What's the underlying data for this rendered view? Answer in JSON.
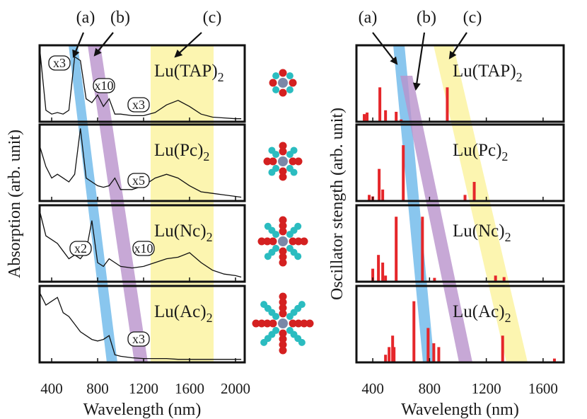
{
  "bands": [
    {
      "label": "(a)",
      "color": "#6cb8ea"
    },
    {
      "label": "(b)",
      "color": "#b992cc"
    },
    {
      "label": "(c)",
      "color": "#fbf39c"
    }
  ],
  "chart_data": [
    {
      "type": "line",
      "ylabel": "Absorption (arb. unit)",
      "xlabel": "Wavelength (nm)",
      "xlim": [
        295,
        2080
      ],
      "xticks": [
        400,
        800,
        1200,
        1600,
        2000
      ],
      "ylim": [
        0,
        1
      ],
      "color": "#111111",
      "x": [
        300,
        350,
        400,
        450,
        500,
        550,
        600,
        650,
        700,
        750,
        800,
        850,
        900,
        950,
        1000,
        1100,
        1200,
        1300,
        1400,
        1500,
        1600,
        1700,
        1800,
        1900,
        2000,
        2050
      ],
      "panels": [
        {
          "name": "Lu(TAP)",
          "subscript": "2",
          "annotations": [
            "x3",
            "x10",
            "x3"
          ],
          "values": [
            0.9,
            0.15,
            0.1,
            0.12,
            0.1,
            0.15,
            0.85,
            0.8,
            0.3,
            0.25,
            0.35,
            0.2,
            0.3,
            0.1,
            0.1,
            0.08,
            0.08,
            0.12,
            0.22,
            0.28,
            0.2,
            0.1,
            0.06,
            0.05,
            0.04,
            0.04
          ]
        },
        {
          "name": "Lu(Pc)",
          "subscript": "2",
          "annotations": [
            "x5"
          ],
          "values": [
            0.7,
            0.45,
            0.3,
            0.35,
            0.3,
            0.25,
            0.35,
            0.95,
            0.3,
            0.25,
            0.2,
            0.18,
            0.2,
            0.3,
            0.15,
            0.15,
            0.2,
            0.3,
            0.35,
            0.3,
            0.2,
            0.12,
            0.1,
            0.08,
            0.06,
            0.05
          ]
        },
        {
          "name": "Lu(Nc)",
          "subscript": "2",
          "annotations": [
            "x2",
            "x10"
          ],
          "values": [
            0.9,
            0.6,
            0.55,
            0.5,
            0.4,
            0.3,
            0.35,
            0.3,
            0.4,
            0.8,
            0.25,
            0.2,
            0.3,
            0.25,
            0.2,
            0.18,
            0.2,
            0.25,
            0.3,
            0.32,
            0.38,
            0.25,
            0.15,
            0.1,
            0.08,
            0.06
          ]
        },
        {
          "name": "Lu(Ac)",
          "subscript": "2",
          "annotations": [
            "x3"
          ],
          "values": [
            0.9,
            0.75,
            0.8,
            0.85,
            0.65,
            0.6,
            0.5,
            0.4,
            0.35,
            0.3,
            0.28,
            0.3,
            0.35,
            0.1,
            0.08,
            0.06,
            0.05,
            0.05,
            0.05,
            0.04,
            0.04,
            0.04,
            0.04,
            0.04,
            0.04,
            0.04
          ]
        }
      ]
    },
    {
      "type": "stick",
      "ylabel": "Oscillator stength (arb. unit)",
      "xlabel": "Wavelength (nm)",
      "xlim": [
        285,
        1745
      ],
      "xticks": [
        400,
        800,
        1200,
        1600
      ],
      "ylim": [
        0,
        1
      ],
      "color": "#e5262a",
      "panels": [
        {
          "name": "Lu(TAP)",
          "subscript": "2",
          "x": [
            340,
            360,
            450,
            490,
            565,
            600,
            925
          ],
          "values": [
            0.1,
            0.12,
            0.45,
            0.15,
            0.13,
            0.03,
            0.45
          ]
        },
        {
          "name": "Lu(Pc)",
          "subscript": "2",
          "x": [
            375,
            400,
            445,
            470,
            615,
            1050,
            1115
          ],
          "values": [
            0.08,
            0.06,
            0.42,
            0.15,
            0.73,
            0.08,
            0.25
          ]
        },
        {
          "name": "Lu(Nc)",
          "subscript": "2",
          "x": [
            400,
            440,
            470,
            490,
            565,
            750,
            835,
            1265,
            1325
          ],
          "values": [
            0.17,
            0.35,
            0.25,
            0.08,
            0.85,
            0.85,
            0.05,
            0.08,
            0.06
          ]
        },
        {
          "name": "Lu(Ac)",
          "subscript": "2",
          "x": [
            490,
            515,
            540,
            550,
            690,
            790,
            830,
            865,
            1315,
            1680
          ],
          "values": [
            0.1,
            0.2,
            0.35,
            0.2,
            0.8,
            0.45,
            0.25,
            0.2,
            0.35,
            0.05
          ]
        }
      ]
    }
  ]
}
